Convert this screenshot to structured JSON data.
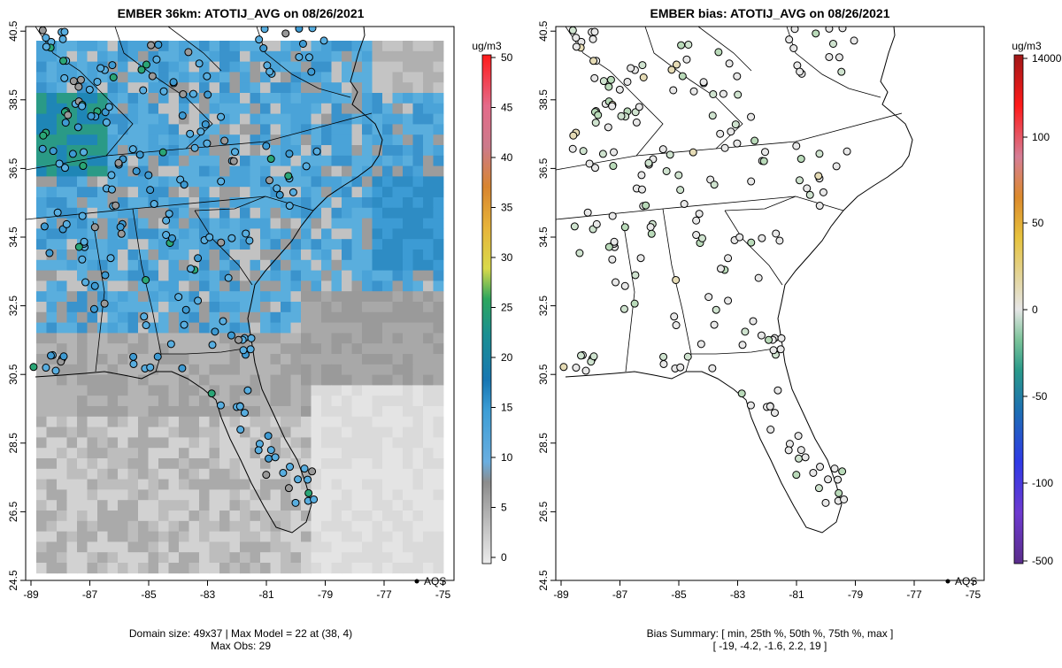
{
  "left_panel": {
    "title": "EMBER 36km: ATOTIJ_AVG on 08/26/2021",
    "legend_label": "AQS",
    "footer_line1": "Domain size: 49x37 | Max Model = 22 at (38, 4)",
    "footer_line2": "Max Obs: 29"
  },
  "right_panel": {
    "title": "EMBER bias: ATOTIJ_AVG on 08/26/2021",
    "legend_label": "AQS",
    "footer_line1": "Bias Summary: [ min, 25th %, 50th %, 75th %, max ]",
    "footer_line2": "[ -19,   -4.2,   -1.6,   2.2,   19 ]"
  },
  "axes": {
    "x_ticks": [
      "-89",
      "-87",
      "-85",
      "-83",
      "-81",
      "-79",
      "-77",
      "-75"
    ],
    "y_ticks": [
      "24.5",
      "26.5",
      "28.5",
      "30.5",
      "32.5",
      "34.5",
      "36.5",
      "38.5",
      "40.5"
    ]
  },
  "colorbar_left": {
    "unit": "ug/m3",
    "ticks": [
      "0",
      "5",
      "10",
      "15",
      "20",
      "25",
      "30",
      "35",
      "40",
      "45",
      "50"
    ]
  },
  "colorbar_right": {
    "unit": "ug/m3",
    "ticks": [
      "14000",
      "100",
      "50",
      "0",
      "-50",
      "-100",
      "-500"
    ]
  },
  "colors": {
    "ocean_light": "#e6e6e6",
    "land_gray": "#a8a8a8",
    "blue": "#56a8dc",
    "teal": "#2a93b8",
    "green": "#2aa676",
    "site_light": "#dde6dd"
  }
}
